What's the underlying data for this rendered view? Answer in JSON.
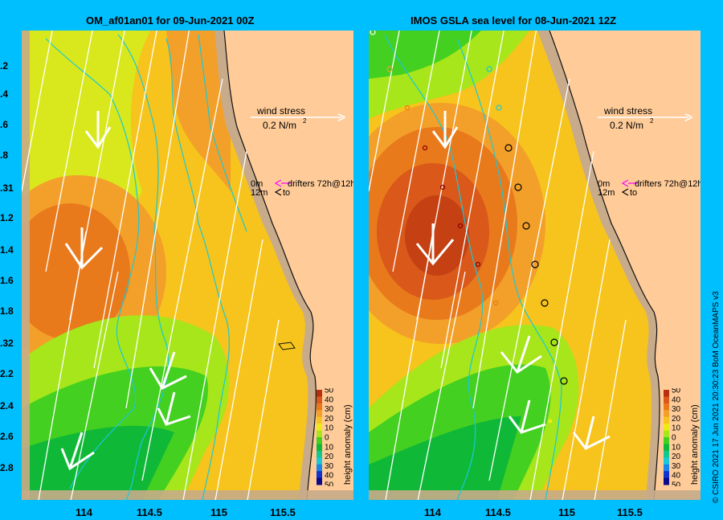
{
  "left_panel": {
    "title": "OM_af01an01 for 09-Jun-2021 00Z",
    "wind_label": "wind stress",
    "wind_scale": "0.2 N/m",
    "wind_exp": "2",
    "drifter_label": "drifters 72h@12h",
    "drifter_0m": "0m",
    "drifter_12m": "12m",
    "drifter_to": "to"
  },
  "right_panel": {
    "title": "IMOS GSLA sea level  for 08-Jun-2021 12Z",
    "wind_label": "wind stress",
    "wind_scale": "0.2 N/m",
    "wind_exp": "2",
    "drifter_label": "drifters 72h@12h",
    "drifter_0m": "0m",
    "drifter_12m": "12m",
    "drifter_to": "to"
  },
  "y_labels": [
    ".2",
    ".4",
    ".6",
    ".8",
    ".31",
    "1.2",
    "1.4",
    "1.6",
    "1.8",
    ".32",
    "2.2",
    "2.4",
    "2.6",
    "2.8"
  ],
  "x_labels": [
    "114",
    "114.5",
    "115",
    "115.5"
  ],
  "colorbar": {
    "title": "height anomaly (cm)",
    "ticks": [
      "50",
      "40",
      "30",
      "20",
      "10",
      "0",
      "10",
      "20",
      "30",
      "40",
      "50"
    ],
    "colors": [
      "#0a0a8c",
      "#1033d0",
      "#1a86e6",
      "#19c9d9",
      "#14c78c",
      "#10b838",
      "#43d020",
      "#a6e61a",
      "#f0ea14",
      "#f6c41c",
      "#f3a02a",
      "#e87a1c",
      "#d9581a",
      "#b8300e"
    ]
  },
  "credit": "© CSIRO 2021  17 Jun 2021 20:30:23 BoM OceanMAPS v3",
  "colors": {
    "background": "#00bfff",
    "land": "#ffcc99",
    "shelf": "#c8ab8a"
  }
}
